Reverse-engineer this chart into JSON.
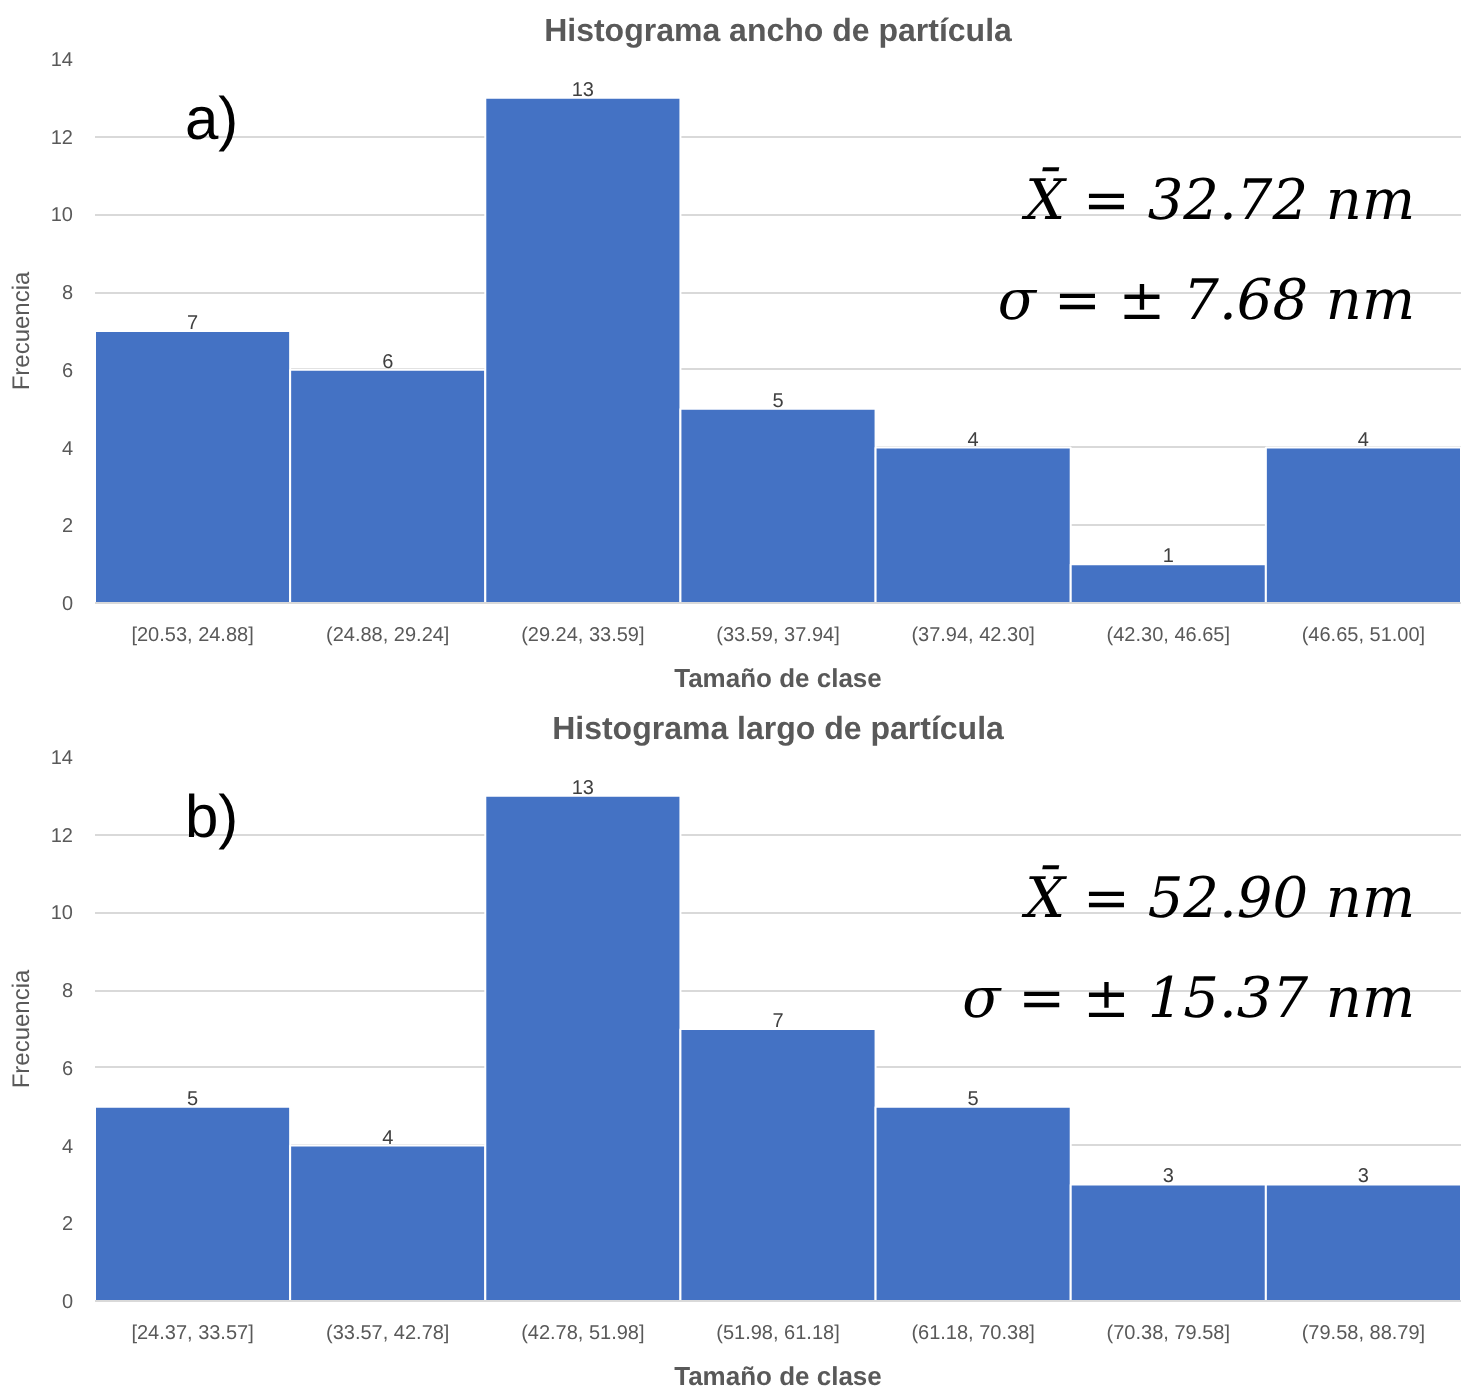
{
  "chart_data": [
    {
      "type": "bar",
      "title": "Histograma ancho de partícula",
      "xlabel": "Tamaño de clase",
      "ylabel": "Frecuencia",
      "categories": [
        "[20.53, 24.88]",
        "(24.88, 29.24]",
        "(29.24, 33.59]",
        "(33.59, 37.94]",
        "(37.94, 42.30]",
        "(42.30, 46.65]",
        "(46.65, 51.00]"
      ],
      "values": [
        7,
        6,
        13,
        5,
        4,
        1,
        4
      ],
      "color": "#4472c4",
      "data_labels": true,
      "ylim": [
        0,
        14
      ],
      "yticks": [
        0,
        2,
        4,
        6,
        8,
        10,
        12,
        14
      ],
      "grid": "y",
      "annotations": [
        "a)",
        "X̄ = 32.72 nm",
        "σ = ± 7.68 nm"
      ]
    },
    {
      "type": "bar",
      "title": "Histograma largo de partícula",
      "xlabel": "Tamaño de clase",
      "ylabel": "Frecuencia",
      "categories": [
        "[24.37, 33.57]",
        "(33.57, 42.78]",
        "(42.78, 51.98]",
        "(51.98, 61.18]",
        "(61.18, 70.38]",
        "(70.38, 79.58]",
        "(79.58, 88.79]"
      ],
      "values": [
        5,
        4,
        13,
        7,
        5,
        3,
        3
      ],
      "color": "#4472c4",
      "data_labels": true,
      "ylim": [
        0,
        14
      ],
      "yticks": [
        0,
        2,
        4,
        6,
        8,
        10,
        12,
        14
      ],
      "grid": "y",
      "annotations": [
        "b)",
        "X̄ = 52.90 nm",
        "σ = ± 15.37 nm"
      ]
    }
  ]
}
